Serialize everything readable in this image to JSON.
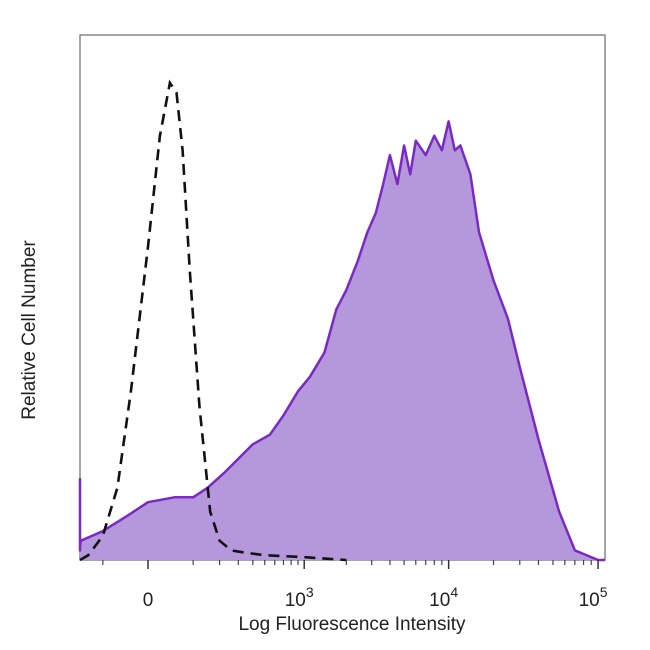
{
  "chart_data": {
    "type": "area",
    "xlabel": "Log Fluorescence Intensity",
    "ylabel": "Relative Cell Number",
    "x_scale": "biexponential",
    "grid": false,
    "legend": "none",
    "x_ticks": [
      {
        "value": 0,
        "base": "0",
        "exp": ""
      },
      {
        "value": 1000,
        "base": "10",
        "exp": "3"
      },
      {
        "value": 10000,
        "base": "10",
        "exp": "4"
      },
      {
        "value": 100000,
        "base": "10",
        "exp": "5"
      }
    ],
    "y_range": [
      0,
      1
    ],
    "series": [
      {
        "style": "dashed",
        "color": "#111111",
        "x": [
          -200,
          -150,
          -100,
          -60,
          -30,
          0,
          20,
          40,
          55,
          70,
          90,
          120,
          160,
          200,
          260,
          350,
          500,
          700,
          1000,
          1400,
          2000
        ],
        "y": [
          0.0,
          0.01,
          0.05,
          0.15,
          0.35,
          0.65,
          0.88,
          0.99,
          0.97,
          0.85,
          0.6,
          0.32,
          0.1,
          0.04,
          0.02,
          0.015,
          0.01,
          0.008,
          0.006,
          0.003,
          0.0
        ]
      },
      {
        "style": "filled",
        "color": "#7A2AC2",
        "fill": "#B597DC",
        "x": [
          -400,
          -350,
          -300,
          -250,
          -180,
          -100,
          -40,
          0,
          50,
          100,
          150,
          220,
          300,
          400,
          550,
          700,
          900,
          1100,
          1400,
          1700,
          2000,
          2400,
          2800,
          3200,
          3600,
          4000,
          4500,
          5000,
          5500,
          6000,
          7000,
          8000,
          9000,
          10000,
          11000,
          12000,
          14000,
          16000,
          20000,
          25000,
          30000,
          40000,
          55000,
          70000,
          100000,
          200000
        ],
        "y": [
          0.17,
          0.06,
          0.02,
          0.03,
          0.04,
          0.06,
          0.09,
          0.12,
          0.13,
          0.13,
          0.15,
          0.18,
          0.21,
          0.24,
          0.26,
          0.3,
          0.35,
          0.38,
          0.43,
          0.52,
          0.56,
          0.62,
          0.68,
          0.72,
          0.78,
          0.84,
          0.78,
          0.86,
          0.8,
          0.87,
          0.84,
          0.88,
          0.85,
          0.91,
          0.85,
          0.86,
          0.8,
          0.68,
          0.58,
          0.5,
          0.4,
          0.25,
          0.1,
          0.02,
          0.0,
          0.0
        ]
      }
    ]
  }
}
